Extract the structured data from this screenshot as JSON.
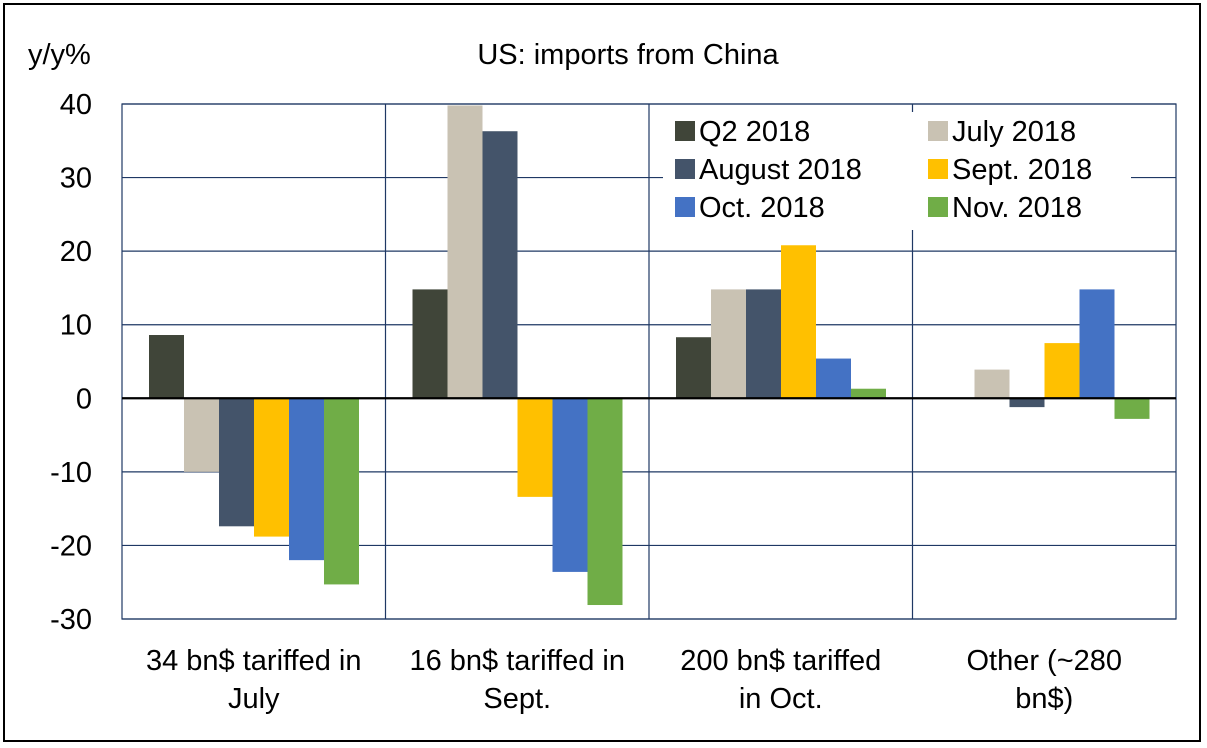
{
  "chart_data": {
    "type": "bar",
    "title": "US: imports from China",
    "ylabel": "y/y%",
    "xlabel": "",
    "ylim": [
      -30,
      40
    ],
    "yticks": [
      40,
      30,
      20,
      10,
      0,
      -10,
      -20,
      -30
    ],
    "grid": true,
    "legend_position": "top-right",
    "categories": [
      [
        "34 bn$ tariffed in",
        "July"
      ],
      [
        "16 bn$ tariffed in",
        "Sept."
      ],
      [
        "200 bn$ tariffed",
        "in Oct."
      ],
      [
        "Other (~280",
        "bn$)"
      ]
    ],
    "series": [
      {
        "name": "Q2 2018",
        "color": "#404539",
        "values": [
          8.6,
          14.8,
          8.3,
          null
        ]
      },
      {
        "name": "July 2018",
        "color": "#c9c2b3",
        "values": [
          -10.0,
          39.8,
          14.8,
          3.9
        ]
      },
      {
        "name": "August 2018",
        "color": "#44546a",
        "values": [
          -17.4,
          36.3,
          14.8,
          -1.2
        ]
      },
      {
        "name": "Sept. 2018",
        "color": "#ffc000",
        "values": [
          -18.8,
          -13.4,
          20.8,
          7.5
        ]
      },
      {
        "name": "Oct. 2018",
        "color": "#4472c4",
        "values": [
          -22.0,
          -23.6,
          5.4,
          14.8
        ]
      },
      {
        "name": "Nov. 2018",
        "color": "#70ad47",
        "values": [
          -25.3,
          -28.1,
          1.3,
          -2.8
        ]
      }
    ]
  }
}
